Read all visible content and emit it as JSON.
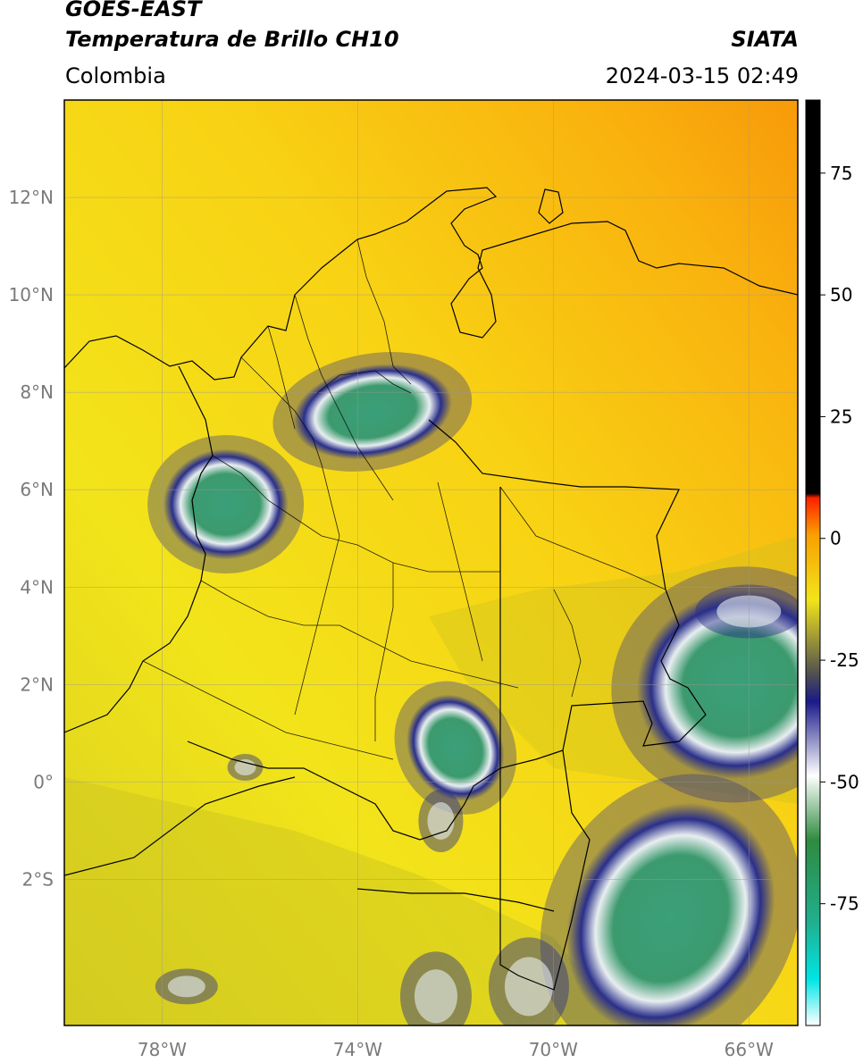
{
  "header": {
    "satellite": "GOES-EAST",
    "product": "Temperatura de Brillo CH10",
    "organization": "SIATA",
    "region": "Colombia",
    "timestamp": "2024-03-15 02:49"
  },
  "map": {
    "lon_range": [
      -80,
      -65
    ],
    "lat_range": [
      -5,
      14
    ],
    "lat_ticks": [
      {
        "value": 12,
        "label": "12°N"
      },
      {
        "value": 10,
        "label": "10°N"
      },
      {
        "value": 8,
        "label": "8°N"
      },
      {
        "value": 6,
        "label": "6°N"
      },
      {
        "value": 4,
        "label": "4°N"
      },
      {
        "value": 2,
        "label": "2°N"
      },
      {
        "value": 0,
        "label": "0°"
      },
      {
        "value": -2,
        "label": "2°S"
      }
    ],
    "lon_ticks": [
      {
        "value": -78,
        "label": "78°W"
      },
      {
        "value": -74,
        "label": "74°W"
      },
      {
        "value": -70,
        "label": "70°W"
      },
      {
        "value": -66,
        "label": "66°W"
      }
    ],
    "grid": true,
    "background_color": "#f2e41a",
    "cold_cloud_regions": [
      {
        "name": "antioquia-santander",
        "lon": -73.7,
        "lat": 7.6,
        "color": "#3c9a6e"
      },
      {
        "name": "choco",
        "lon": -76.7,
        "lat": 5.7,
        "color": "#3c9a6e"
      },
      {
        "name": "guaviare",
        "lon": -72.0,
        "lat": 0.7,
        "color": "#3c9a6e"
      },
      {
        "name": "venezuela-brazil-east",
        "lon": -66.2,
        "lat": 2.0,
        "color": "#3c9a6e"
      },
      {
        "name": "amazonas-east",
        "lon": -67.6,
        "lat": -2.8,
        "color": "#3c9a6e"
      }
    ]
  },
  "colorbar": {
    "range": [
      -100,
      90
    ],
    "ticks": [
      {
        "value": 75,
        "label": "75"
      },
      {
        "value": 50,
        "label": "50"
      },
      {
        "value": 25,
        "label": "25"
      },
      {
        "value": 0,
        "label": "0"
      },
      {
        "value": -25,
        "label": "-25"
      },
      {
        "value": -50,
        "label": "-50"
      },
      {
        "value": -75,
        "label": "-75"
      }
    ]
  }
}
